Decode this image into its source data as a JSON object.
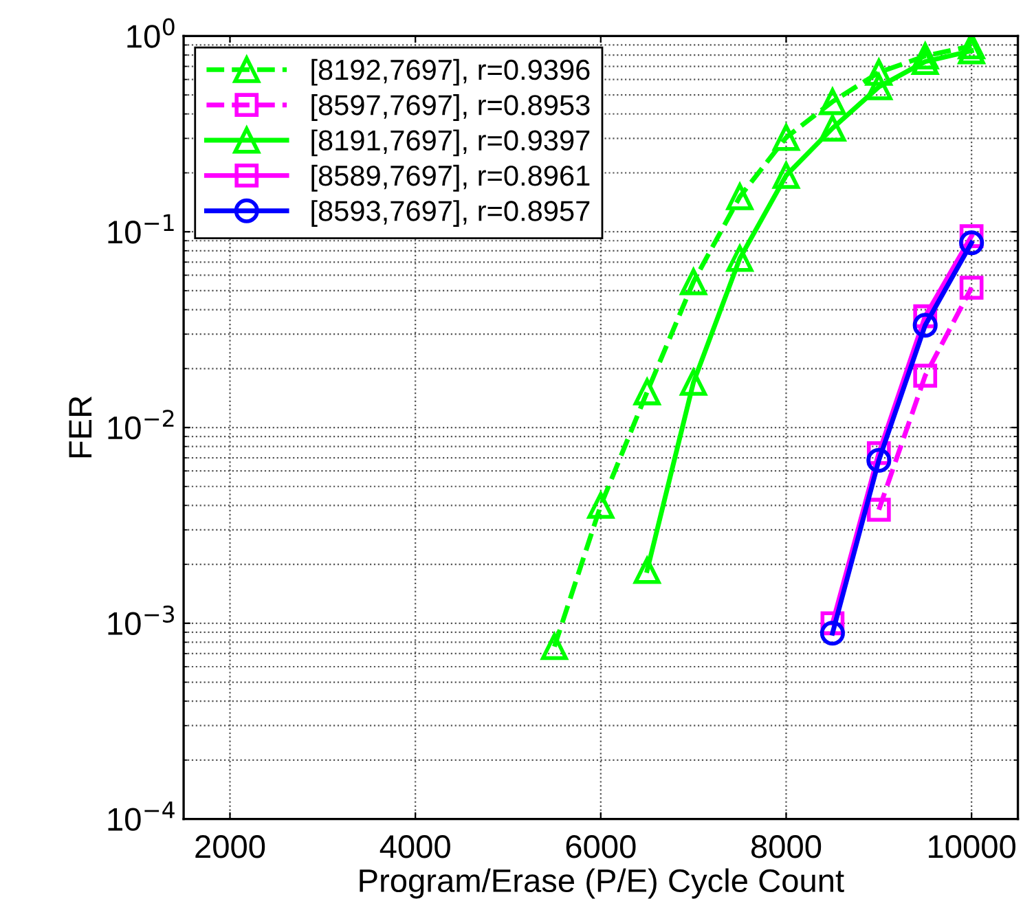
{
  "chart_data": {
    "type": "line",
    "xlabel": "Program/Erase (P/E) Cycle Count",
    "ylabel": "FER",
    "log": "y",
    "xlim": [
      1500,
      10500
    ],
    "xticks": [
      2000,
      4000,
      6000,
      8000,
      10000
    ],
    "ylim": [
      0.0001,
      1
    ],
    "yticks": [
      {
        "value": 0.0001,
        "label": "10$^{−4}$"
      },
      {
        "value": 0.001,
        "label": "10$^{−3}$"
      },
      {
        "value": 0.01,
        "label": "10$^{−2}$"
      },
      {
        "value": 0.1,
        "label": "10$^{−1}$"
      },
      {
        "value": 1,
        "label": "10$^{0}$"
      }
    ],
    "grid": true,
    "legend": "top left",
    "series": [
      {
        "name": "[8192,7697], r=0.9396",
        "color": "#00ff00",
        "marker": "triangle",
        "line_style": "dashed",
        "x": [
          5500,
          6000,
          6500,
          7000,
          7500,
          8000,
          8500,
          9000,
          9500,
          10000
        ],
        "values": [
          0.00076,
          0.004,
          0.0152,
          0.0555,
          0.151,
          0.303,
          0.462,
          0.652,
          0.79,
          0.89
        ]
      },
      {
        "name": "[8597,7697], r=0.8953",
        "color": "#ff00ff",
        "marker": "square",
        "line_style": "dashed",
        "x": [
          9000,
          9500,
          10000
        ],
        "values": [
          0.0038,
          0.0184,
          0.0518
        ]
      },
      {
        "name": "[8191,7697], r=0.9397",
        "color": "#00ff00",
        "marker": "triangle",
        "line_style": "solid",
        "x": [
          6500,
          7000,
          7500,
          8000,
          8500,
          9000,
          9500,
          10000
        ],
        "values": [
          0.00186,
          0.017,
          0.073,
          0.194,
          0.338,
          0.55,
          0.74,
          0.84
        ]
      },
      {
        "name": "[8589,7697], r=0.8961",
        "color": "#ff00ff",
        "marker": "square",
        "line_style": "solid",
        "x": [
          8500,
          9000,
          9500,
          10000
        ],
        "values": [
          0.001,
          0.0074,
          0.037,
          0.095
        ]
      },
      {
        "name": "[8593,7697], r=0.8957",
        "color": "#0000ff",
        "marker": "circle",
        "line_style": "solid",
        "x": [
          8500,
          9000,
          9500,
          10000
        ],
        "values": [
          0.00089,
          0.0068,
          0.0333,
          0.0878
        ]
      }
    ]
  }
}
